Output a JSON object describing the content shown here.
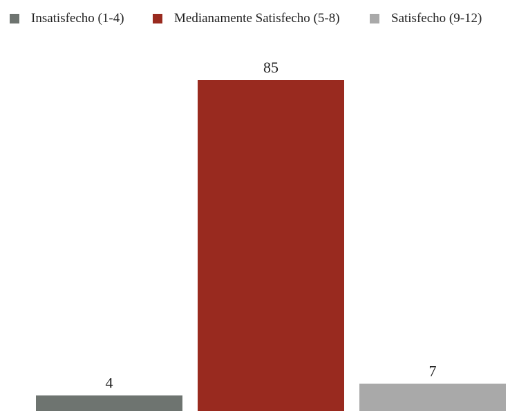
{
  "chart_data": {
    "type": "bar",
    "categories": [
      "Insatisfecho (1-4)",
      "Medianamente Satisfecho (5-8)",
      "Satisfecho (9-12)"
    ],
    "values": [
      4,
      85,
      7
    ],
    "colors": [
      "#6e7470",
      "#992a1f",
      "#a9a9a9"
    ],
    "data_labels": [
      "4",
      "85",
      "7"
    ],
    "ylim": [
      0,
      85
    ],
    "grid": false,
    "legend": {
      "position": "top-left",
      "entries": [
        "Insatisfecho (1-4)",
        "Medianamente Satisfecho (5-8)",
        "Satisfecho (9-12)"
      ]
    }
  }
}
